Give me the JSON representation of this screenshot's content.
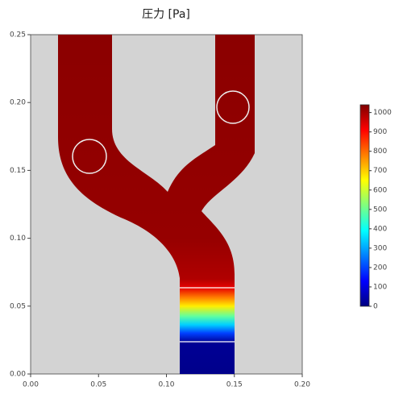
{
  "chart_data": {
    "type": "field",
    "title": "圧力 [Pa]",
    "xlim": [
      0,
      0.2
    ],
    "ylim": [
      0,
      0.25
    ],
    "xticks": [
      {
        "value": 0,
        "label": "0.00"
      },
      {
        "value": 0.05,
        "label": "0.05"
      },
      {
        "value": 0.1,
        "label": "0.10"
      },
      {
        "value": 0.15,
        "label": "0.15"
      },
      {
        "value": 0.2,
        "label": "0.20"
      }
    ],
    "yticks": [
      {
        "value": 0,
        "label": "0.00"
      },
      {
        "value": 0.05,
        "label": "0.05"
      },
      {
        "value": 0.1,
        "label": "0.10"
      },
      {
        "value": 0.15,
        "label": "0.15"
      },
      {
        "value": 0.2,
        "label": "0.20"
      },
      {
        "value": 0.25,
        "label": "0.25"
      }
    ],
    "clim": [
      0,
      1040
    ],
    "cticks": [
      0,
      100,
      200,
      300,
      400,
      500,
      600,
      700,
      800,
      900,
      1000
    ],
    "colorscale": [
      "#00007f",
      "#0000ff",
      "#007fff",
      "#00ffff",
      "#7fff7f",
      "#ffff00",
      "#ff7f00",
      "#ff0000",
      "#7f0000"
    ]
  }
}
